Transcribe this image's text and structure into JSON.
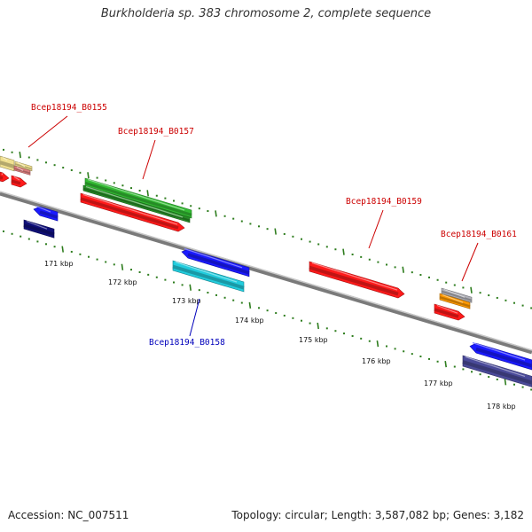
{
  "title": "Burkholderia sp. 383 chromosome 2, complete sequence",
  "footer": {
    "accession": "Accession: NC_007511",
    "topology": "Topology: circular; Length: 3,587,082 bp; Genes: 3,182"
  },
  "axis_ticks": [
    "171 kbp",
    "172 kbp",
    "173 kbp",
    "174 kbp",
    "175 kbp",
    "176 kbp",
    "177 kbp",
    "178 kbp"
  ],
  "gene_labels": {
    "b0155": "Bcep18194_B0155",
    "b0157": "Bcep18194_B0157",
    "b0158": "Bcep18194_B0158",
    "b0159": "Bcep18194_B0159",
    "b0161": "Bcep18194_B0161"
  },
  "colors": {
    "backbone": "#7a7a7a",
    "forward_label": "#cc0000",
    "reverse_label": "#0000bb",
    "tick_mark": "#2e7d1e",
    "cds_red": "#ff1a1a",
    "cds_green": "#33bb33",
    "cds_blue": "#1a1aff",
    "cds_cyan": "#22ccdd",
    "cds_navy": "#10107a",
    "cds_purple": "#4a4a99",
    "cds_orange": "#ff9900",
    "cds_gray": "#b0b0b8",
    "cds_yellow": "#f0e090",
    "cds_pink": "#e08080"
  }
}
